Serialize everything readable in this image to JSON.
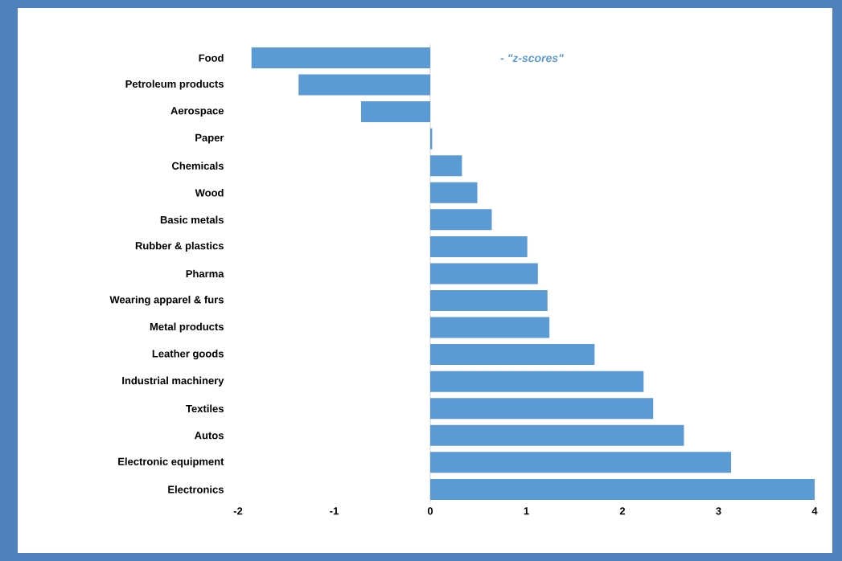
{
  "chart_data": {
    "type": "bar",
    "orientation": "horizontal",
    "categories": [
      "Food",
      "Petroleum products",
      "Aerospace",
      "Paper",
      "Chemicals",
      "Wood",
      "Basic metals",
      "Rubber & plastics",
      "Pharma",
      "Wearing apparel & furs",
      "Metal products",
      "Leather goods",
      "Industrial machinery",
      "Textiles",
      "Autos",
      "Electronic equipment",
      "Electronics"
    ],
    "values": [
      -1.86,
      -1.37,
      -0.72,
      0.02,
      0.33,
      0.49,
      0.64,
      1.01,
      1.12,
      1.22,
      1.24,
      1.71,
      2.22,
      2.32,
      2.64,
      3.13,
      4.0
    ],
    "color": "#5b9bd5",
    "xlim": [
      -2,
      4
    ],
    "xticks": [
      -2,
      -1,
      0,
      1,
      2,
      3,
      4
    ],
    "annotations": [
      "- \"z-scores\""
    ]
  }
}
